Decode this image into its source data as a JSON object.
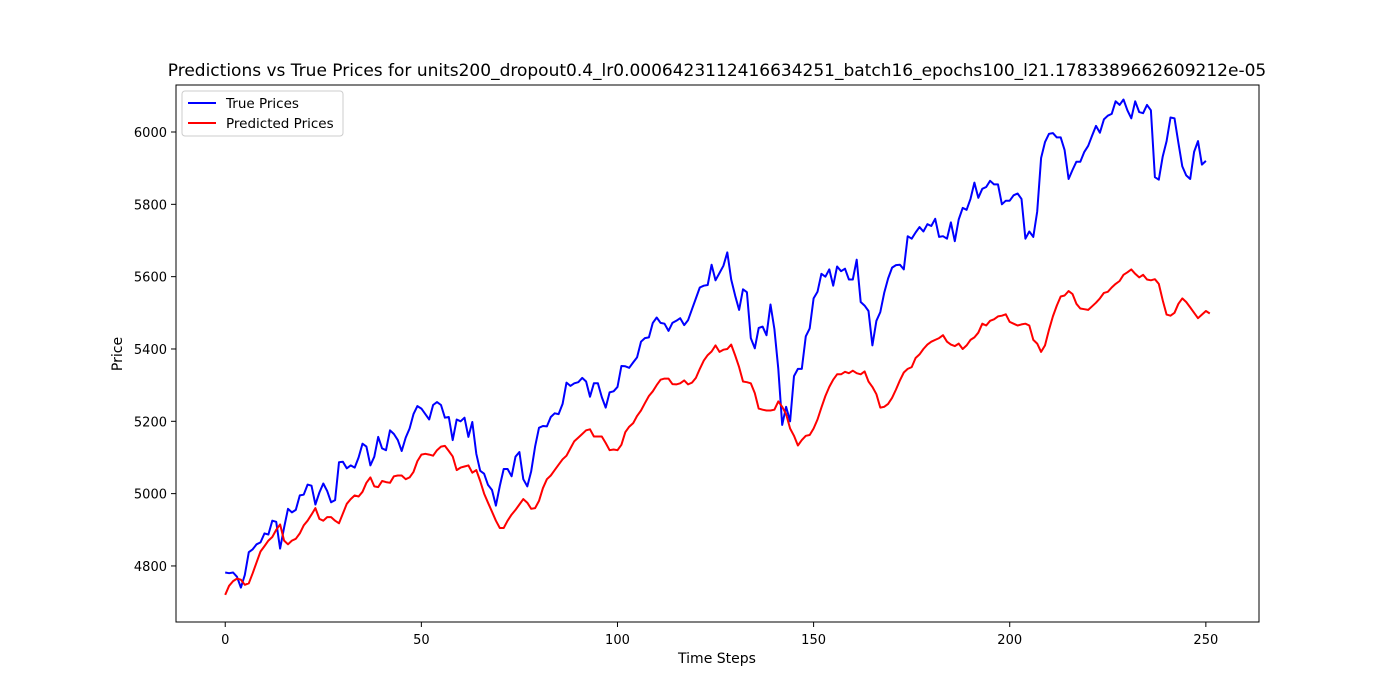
{
  "chart_data": {
    "type": "line",
    "title": "Predictions vs True Prices for units200_dropout0.4_lr0.0006423112416634251_batch16_epochs100_l21.1783389662609212e-05",
    "xlabel": "Time Steps",
    "ylabel": "Price",
    "xlim": [
      -12.55,
      263.55
    ],
    "ylim": [
      4645,
      6130
    ],
    "x_ticks": [
      0,
      50,
      100,
      150,
      200,
      250
    ],
    "y_ticks": [
      4800,
      5000,
      5200,
      5400,
      5600,
      5800,
      6000
    ],
    "grid": false,
    "legend_position": "top-left",
    "series": [
      {
        "name": "True Prices",
        "color": "#0000ff",
        "x_start": 0,
        "x_step": 1,
        "values": [
          4782,
          4780,
          4782,
          4770,
          4740,
          4775,
          4838,
          4846,
          4860,
          4865,
          4890,
          4887,
          4925,
          4922,
          4848,
          4906,
          4958,
          4948,
          4955,
          4995,
          4997,
          5025,
          5022,
          4970,
          5003,
          5028,
          5007,
          4976,
          4982,
          5087,
          5088,
          5070,
          5078,
          5072,
          5100,
          5138,
          5130,
          5078,
          5102,
          5157,
          5125,
          5120,
          5175,
          5165,
          5148,
          5118,
          5155,
          5180,
          5220,
          5242,
          5235,
          5220,
          5205,
          5245,
          5253,
          5245,
          5210,
          5212,
          5148,
          5205,
          5200,
          5210,
          5157,
          5198,
          5110,
          5063,
          5055,
          5024,
          5010,
          4967,
          5021,
          5068,
          5068,
          5048,
          5102,
          5115,
          5040,
          5020,
          5062,
          5130,
          5182,
          5187,
          5186,
          5212,
          5222,
          5220,
          5248,
          5307,
          5298,
          5305,
          5308,
          5320,
          5310,
          5268,
          5305,
          5305,
          5267,
          5238,
          5280,
          5283,
          5295,
          5353,
          5352,
          5348,
          5363,
          5377,
          5420,
          5430,
          5432,
          5472,
          5487,
          5472,
          5470,
          5450,
          5472,
          5478,
          5485,
          5466,
          5480,
          5510,
          5540,
          5570,
          5575,
          5577,
          5633,
          5590,
          5610,
          5630,
          5667,
          5592,
          5547,
          5508,
          5565,
          5557,
          5430,
          5402,
          5458,
          5462,
          5438,
          5523,
          5455,
          5345,
          5190,
          5240,
          5200,
          5325,
          5345,
          5345,
          5435,
          5457,
          5540,
          5558,
          5608,
          5600,
          5620,
          5575,
          5628,
          5615,
          5622,
          5592,
          5592,
          5647,
          5530,
          5520,
          5505,
          5410,
          5478,
          5502,
          5555,
          5595,
          5625,
          5632,
          5633,
          5620,
          5712,
          5705,
          5722,
          5737,
          5725,
          5745,
          5740,
          5760,
          5710,
          5712,
          5705,
          5750,
          5698,
          5758,
          5790,
          5785,
          5815,
          5860,
          5818,
          5843,
          5848,
          5865,
          5855,
          5855,
          5800,
          5810,
          5810,
          5825,
          5830,
          5815,
          5705,
          5725,
          5710,
          5780,
          5928,
          5972,
          5995,
          5997,
          5985,
          5985,
          5950,
          5870,
          5895,
          5918,
          5918,
          5945,
          5962,
          5990,
          6017,
          5998,
          6035,
          6045,
          6050,
          6085,
          6075,
          6090,
          6060,
          6038,
          6085,
          6055,
          6052,
          6075,
          6060,
          5875,
          5868,
          5932,
          5975,
          6040,
          6038,
          5970,
          5905,
          5880,
          5870,
          5945,
          5975,
          5910,
          5920
        ]
      },
      {
        "name": "Predicted Prices",
        "color": "#ff0000",
        "x_start": 0,
        "x_step": 1,
        "values": [
          4720,
          4745,
          4758,
          4765,
          4762,
          4748,
          4752,
          4780,
          4810,
          4840,
          4855,
          4870,
          4880,
          4900,
          4915,
          4870,
          4860,
          4870,
          4875,
          4890,
          4912,
          4925,
          4942,
          4960,
          4930,
          4925,
          4935,
          4935,
          4925,
          4918,
          4945,
          4972,
          4985,
          4995,
          4992,
          5005,
          5030,
          5045,
          5020,
          5018,
          5035,
          5032,
          5030,
          5048,
          5050,
          5050,
          5040,
          5045,
          5060,
          5090,
          5108,
          5110,
          5108,
          5105,
          5120,
          5130,
          5132,
          5118,
          5103,
          5065,
          5072,
          5075,
          5078,
          5058,
          5065,
          5035,
          5000,
          4975,
          4950,
          4925,
          4905,
          4905,
          4925,
          4942,
          4955,
          4970,
          4985,
          4975,
          4958,
          4960,
          4980,
          5015,
          5040,
          5050,
          5065,
          5080,
          5095,
          5105,
          5125,
          5145,
          5155,
          5165,
          5175,
          5178,
          5158,
          5158,
          5158,
          5140,
          5120,
          5122,
          5120,
          5135,
          5170,
          5185,
          5195,
          5215,
          5230,
          5250,
          5270,
          5283,
          5300,
          5315,
          5318,
          5318,
          5303,
          5302,
          5305,
          5313,
          5302,
          5307,
          5320,
          5345,
          5368,
          5383,
          5393,
          5410,
          5392,
          5398,
          5400,
          5412,
          5382,
          5350,
          5310,
          5308,
          5305,
          5278,
          5235,
          5232,
          5230,
          5230,
          5232,
          5255,
          5240,
          5220,
          5180,
          5160,
          5133,
          5148,
          5160,
          5162,
          5180,
          5205,
          5238,
          5270,
          5295,
          5315,
          5330,
          5330,
          5337,
          5333,
          5340,
          5333,
          5330,
          5338,
          5310,
          5295,
          5275,
          5238,
          5240,
          5248,
          5265,
          5288,
          5313,
          5335,
          5345,
          5350,
          5375,
          5385,
          5400,
          5412,
          5420,
          5425,
          5430,
          5438,
          5420,
          5412,
          5408,
          5415,
          5400,
          5410,
          5425,
          5432,
          5445,
          5470,
          5465,
          5478,
          5482,
          5490,
          5492,
          5496,
          5475,
          5470,
          5465,
          5468,
          5470,
          5465,
          5425,
          5415,
          5392,
          5410,
          5453,
          5490,
          5520,
          5545,
          5548,
          5560,
          5552,
          5525,
          5512,
          5510,
          5508,
          5518,
          5528,
          5540,
          5555,
          5558,
          5570,
          5580,
          5588,
          5605,
          5612,
          5620,
          5608,
          5598,
          5605,
          5592,
          5590,
          5593,
          5580,
          5535,
          5495,
          5492,
          5500,
          5525,
          5540,
          5530,
          5515,
          5500,
          5485,
          5495,
          5505,
          5498
        ]
      }
    ]
  }
}
